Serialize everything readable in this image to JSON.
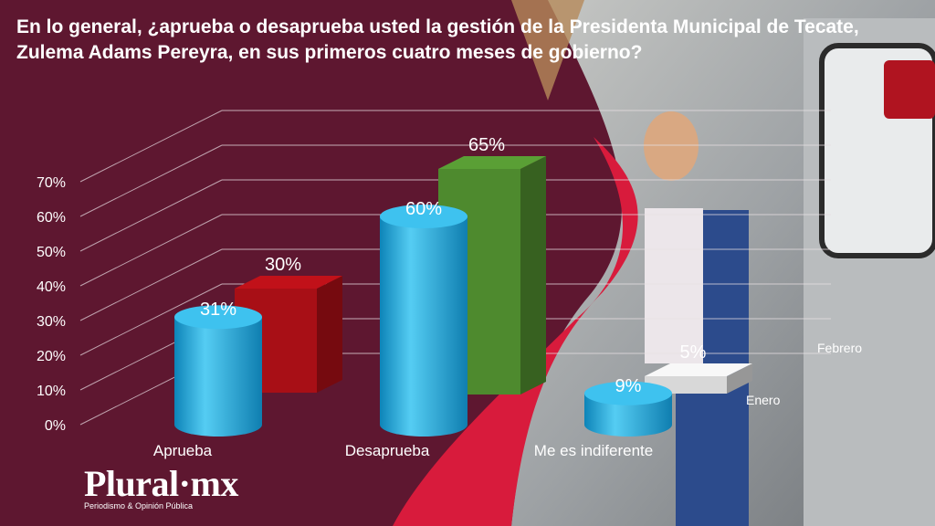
{
  "title": "En lo general, ¿aprueba o desaprueba usted la gestión de la Presidenta Municipal de Tecate, Zulema Adams Pereyra, en sus primeros cuatro meses de gobierno?",
  "logo": {
    "name": "Plural·mx",
    "tagline": "Periodismo & Opinión Pública"
  },
  "colors": {
    "background": "#5e1730",
    "band_red": "#d81b3c",
    "enero": "#29b6e6",
    "febrero_aprueba": "#a80f16",
    "febrero_desaprueba": "#4e8a2e",
    "febrero_indiferente": "#d8d8d8",
    "text": "#ffffff"
  },
  "chart_data": {
    "type": "bar",
    "style": "3d",
    "categories": [
      "Aprueba",
      "Desaprueba",
      "Me es indiferente"
    ],
    "series": [
      {
        "name": "Enero",
        "values": [
          31,
          60,
          9
        ],
        "shape": "cylinder"
      },
      {
        "name": "Febrero",
        "values": [
          30,
          65,
          5
        ],
        "shape": "box"
      }
    ],
    "data_labels": [
      [
        "31%",
        "60%",
        "9%"
      ],
      [
        "30%",
        "65%",
        "5%"
      ]
    ],
    "y_ticks": [
      "0%",
      "10%",
      "20%",
      "30%",
      "40%",
      "50%",
      "60%",
      "70%"
    ],
    "ylim": [
      0,
      70
    ],
    "grid": true,
    "legend_placement": "right, next to series"
  }
}
